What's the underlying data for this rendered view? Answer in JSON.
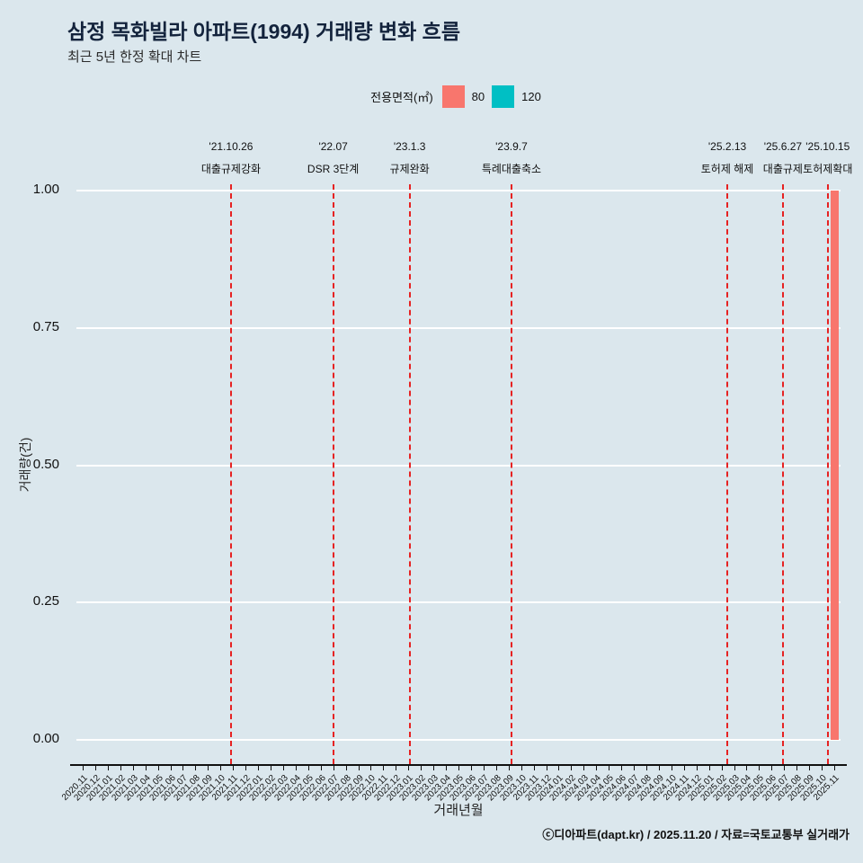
{
  "page": {
    "footer": "ⓒ디아파트(dapt.kr) / 2025.11.20 / 자료=국토교통부 실거래가"
  },
  "legend": {
    "title": "전용면적(㎡)",
    "items": [
      {
        "label": "80",
        "color": "#f8766d"
      },
      {
        "label": "120",
        "color": "#00bfc4"
      }
    ]
  },
  "colors": {
    "background": "#dbe7ed",
    "grid": "#ffffff",
    "event_line": "#e62222",
    "axis": "#111111",
    "title": "#13233c"
  },
  "chart_data": {
    "type": "bar",
    "title": "삼정 목화빌라 아파트(1994) 거래량 변화 흐름",
    "subtitle": "최근 5년 한정 확대 차트",
    "xlabel": "거래년월",
    "ylabel": "거래량(건)",
    "ylim": [
      0,
      1
    ],
    "grid": true,
    "legend_position": "top",
    "yticks": [
      {
        "value": 1.0,
        "label": "1.00"
      },
      {
        "value": 0.75,
        "label": "0.75"
      },
      {
        "value": 0.5,
        "label": "0.50"
      },
      {
        "value": 0.25,
        "label": "0.25"
      },
      {
        "value": 0.0,
        "label": "0.00"
      }
    ],
    "categories": [
      "2020.11",
      "2020.12",
      "2021.01",
      "2021.02",
      "2021.03",
      "2021.04",
      "2021.05",
      "2021.06",
      "2021.07",
      "2021.08",
      "2021.09",
      "2021.10",
      "2021.11",
      "2021.12",
      "2022.01",
      "2022.02",
      "2022.03",
      "2022.04",
      "2022.05",
      "2022.06",
      "2022.07",
      "2022.08",
      "2022.09",
      "2022.10",
      "2022.11",
      "2022.12",
      "2023.01",
      "2023.02",
      "2023.03",
      "2023.04",
      "2023.05",
      "2023.06",
      "2023.07",
      "2023.08",
      "2023.09",
      "2023.10",
      "2023.11",
      "2023.12",
      "2024.01",
      "2024.02",
      "2024.03",
      "2024.04",
      "2024.05",
      "2024.06",
      "2024.07",
      "2024.08",
      "2024.09",
      "2024.10",
      "2024.11",
      "2024.12",
      "2025.01",
      "2025.02",
      "2025.03",
      "2025.04",
      "2025.05",
      "2025.06",
      "2025.07",
      "2025.08",
      "2025.09",
      "2025.10",
      "2025.11"
    ],
    "series": [
      {
        "name": "80",
        "color": "#f8766d",
        "points": [
          {
            "category": "2025.11",
            "value": 1.0
          }
        ]
      },
      {
        "name": "120",
        "color": "#00bfc4",
        "points": []
      }
    ],
    "events": [
      {
        "date": "'21.10.26",
        "label": "대출규제강화",
        "month_index": 11.84
      },
      {
        "date": "'22.07",
        "label": "DSR 3단계",
        "month_index": 20.0
      },
      {
        "date": "'23.1.3",
        "label": "규제완화",
        "month_index": 26.1
      },
      {
        "date": "'23.9.7",
        "label": "특례대출축소",
        "month_index": 34.23
      },
      {
        "date": "'25.2.13",
        "label": "토허제 해제",
        "month_index": 51.46
      },
      {
        "date": "'25.6.27",
        "label": "대출규제",
        "month_index": 55.9
      },
      {
        "date": "'25.10.15",
        "label": "토허제확대",
        "month_index": 59.48
      }
    ]
  }
}
